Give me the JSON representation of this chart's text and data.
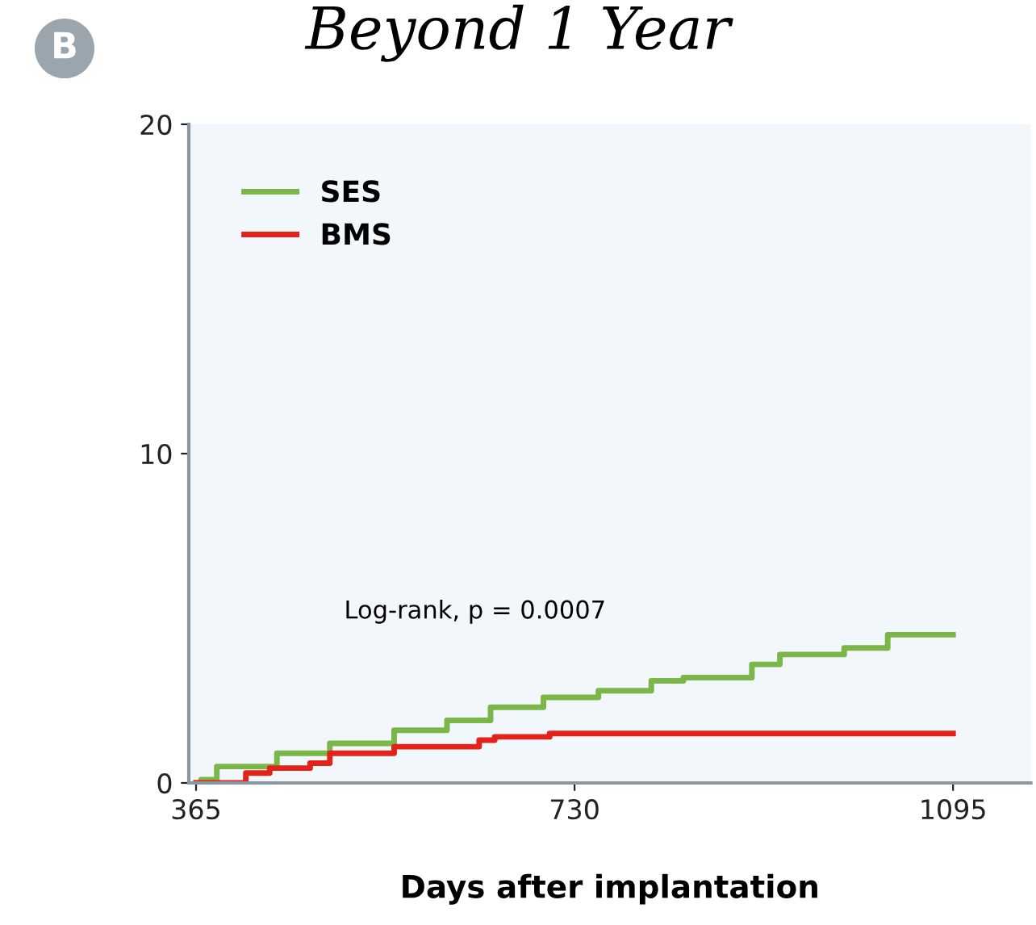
{
  "chart_data": {
    "type": "step",
    "title": "Beyond 1 Year",
    "xlabel": "Days after implantation",
    "annotations": [
      "B",
      "Log-rank, p = 0.0007"
    ],
    "series": [
      {
        "name": "SES",
        "color": "#7ab648",
        "x": [
          365,
          370,
          385,
          443,
          494,
          556,
          607,
          649,
          700,
          753,
          804,
          835,
          901,
          928,
          990,
          1032,
          1095
        ],
        "values": [
          0,
          0.1,
          0.5,
          0.9,
          1.2,
          1.6,
          1.9,
          2.3,
          2.6,
          2.8,
          3.1,
          3.2,
          3.6,
          3.9,
          4.1,
          4.5,
          4.5
        ]
      },
      {
        "name": "BMS",
        "color": "#e2231a",
        "x": [
          365,
          413,
          436,
          475,
          494,
          556,
          638,
          653,
          706,
          1095
        ],
        "values": [
          0,
          0.3,
          0.45,
          0.6,
          0.9,
          1.1,
          1.3,
          1.4,
          1.5,
          1.5
        ]
      }
    ],
    "xlim": [
      358,
      1170
    ],
    "xticks": [
      365,
      730,
      1095
    ],
    "ylim": [
      0,
      20
    ],
    "yticks": [
      0,
      10,
      20
    ],
    "grid": false,
    "legend": "top left",
    "line_style": "solid",
    "marker": "none"
  }
}
